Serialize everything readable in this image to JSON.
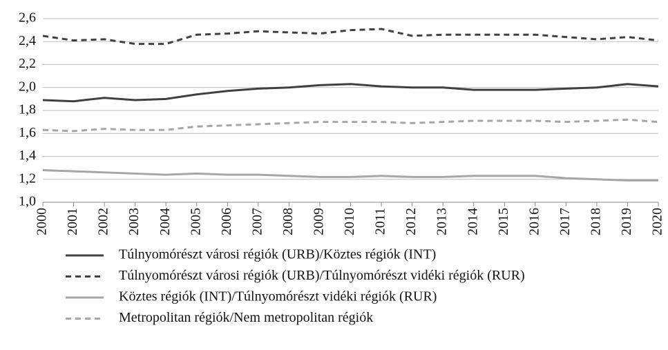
{
  "chart_data": {
    "type": "line",
    "x": [
      2000,
      2001,
      2002,
      2003,
      2004,
      2005,
      2006,
      2007,
      2008,
      2009,
      2010,
      2011,
      2012,
      2013,
      2014,
      2015,
      2016,
      2017,
      2018,
      2019,
      2020
    ],
    "xlim": [
      2000,
      2020
    ],
    "xticks": [
      2000,
      2001,
      2002,
      2003,
      2004,
      2005,
      2006,
      2007,
      2008,
      2009,
      2010,
      2011,
      2012,
      2013,
      2014,
      2015,
      2016,
      2017,
      2018,
      2019,
      2020
    ],
    "ylim": [
      1.0,
      2.6
    ],
    "yticks": [
      {
        "value": 1.0,
        "label": "1,0"
      },
      {
        "value": 1.2,
        "label": "1,2"
      },
      {
        "value": 1.4,
        "label": "1,4"
      },
      {
        "value": 1.6,
        "label": "1,6"
      },
      {
        "value": 1.8,
        "label": "1,8"
      },
      {
        "value": 2.0,
        "label": "2,0"
      },
      {
        "value": 2.2,
        "label": "2,2"
      },
      {
        "value": 2.4,
        "label": "2,4"
      },
      {
        "value": 2.6,
        "label": "2,6"
      }
    ],
    "grid": true,
    "legend": "bottom",
    "series": [
      {
        "name": "Túlnyomórészt városi régiók (URB)/Köztes régiók (INT)",
        "color": "#404040",
        "linestyle": "solid",
        "values": [
          1.89,
          1.88,
          1.91,
          1.89,
          1.9,
          1.94,
          1.97,
          1.99,
          2.0,
          2.02,
          2.03,
          2.01,
          2.0,
          2.0,
          1.98,
          1.98,
          1.98,
          1.99,
          2.0,
          2.03,
          2.01
        ]
      },
      {
        "name": "Túlnyomórészt városi régiók (URB)/Túlnyomórészt vidéki régiók (RUR)",
        "color": "#404040",
        "linestyle": "dashed",
        "values": [
          2.45,
          2.41,
          2.42,
          2.38,
          2.38,
          2.46,
          2.47,
          2.49,
          2.48,
          2.47,
          2.5,
          2.51,
          2.45,
          2.46,
          2.46,
          2.46,
          2.46,
          2.44,
          2.42,
          2.44,
          2.41
        ]
      },
      {
        "name": "Köztes régiók (INT)/Túlnyomórészt vidéki régiók (RUR)",
        "color": "#a6a6a6",
        "linestyle": "solid",
        "values": [
          1.28,
          1.27,
          1.26,
          1.25,
          1.24,
          1.25,
          1.24,
          1.24,
          1.23,
          1.22,
          1.22,
          1.23,
          1.22,
          1.22,
          1.23,
          1.23,
          1.23,
          1.21,
          1.2,
          1.19,
          1.19
        ]
      },
      {
        "name": "Metropolitan régiók/Nem metropolitan régiók",
        "color": "#a6a6a6",
        "linestyle": "dashed",
        "values": [
          1.63,
          1.62,
          1.64,
          1.63,
          1.63,
          1.66,
          1.67,
          1.68,
          1.69,
          1.7,
          1.7,
          1.7,
          1.69,
          1.7,
          1.71,
          1.71,
          1.71,
          1.7,
          1.71,
          1.72,
          1.7
        ]
      }
    ]
  }
}
